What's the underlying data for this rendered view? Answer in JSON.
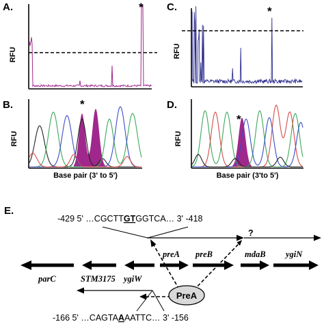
{
  "panels": {
    "A": {
      "label": "A.",
      "ylabel": "RFU",
      "star": "*"
    },
    "B": {
      "label": "B.",
      "ylabel": "RFU",
      "xlabel": "Base pair (3' to 5')",
      "star": "*"
    },
    "C": {
      "label": "C.",
      "ylabel": "RFU",
      "star": "*"
    },
    "D": {
      "label": "D.",
      "ylabel": "RFU",
      "xlabel": "Base pair (3'to 5')",
      "star": "*"
    },
    "E": {
      "label": "E."
    }
  },
  "sequences": {
    "top": {
      "left": "-429 5' …CGCTT",
      "site": "GT",
      "right": "GGTCA… 3' -418"
    },
    "bottom": {
      "left": "-166 5' …CAGTA",
      "site": "A",
      "right": "AATTC… 3' -156"
    }
  },
  "genes": {
    "parC": "parC",
    "stm": "STM3175",
    "ygiW": "ygiW",
    "preA": "preA",
    "preB": "preB",
    "mdaB": "mdaB",
    "ygiN": "ygiN"
  },
  "regulator": "PreA",
  "unknown_mark": "?",
  "colors": {
    "magenta": "#a0288c",
    "blue_trace": "#2b2a8c",
    "trace_green": "#3aa85a",
    "trace_red": "#d84a4a",
    "trace_blue": "#3b4bc8",
    "trace_black": "#222222"
  }
}
